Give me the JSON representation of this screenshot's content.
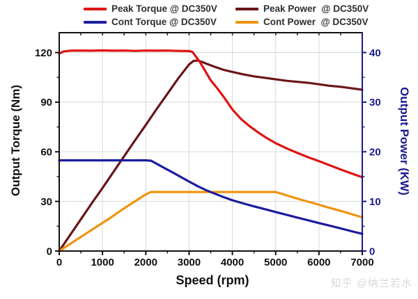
{
  "legend": {
    "items": [
      {
        "label": "Peak Torque @ DC350V",
        "color": "#e01212"
      },
      {
        "label": "Peak Power  @ DC350V",
        "color": "#6a1517"
      },
      {
        "label": "Cont Torque @ DC350V",
        "color": "#1c1c9c"
      },
      {
        "label": "Cont Power  @ DC350V",
        "color": "#f0940f"
      }
    ]
  },
  "watermark": {
    "text": "知乎 @纳兰若水"
  },
  "chart_data": {
    "type": "line",
    "title": "",
    "xlabel": "Speed (rpm)",
    "x_axis": {
      "range": [
        0,
        7000
      ],
      "major_ticks": [
        0,
        1000,
        2000,
        3000,
        4000,
        5000,
        6000,
        7000
      ],
      "minor_step": 500
    },
    "y_left": {
      "label": "Output Torque (Nm)",
      "range": [
        0,
        132
      ],
      "major_ticks": [
        0,
        30,
        60,
        90,
        120
      ],
      "minor_step": 15,
      "color": "#111111"
    },
    "y_right": {
      "label": "Output Power (KW)",
      "range": [
        0,
        44
      ],
      "major_ticks": [
        0,
        10,
        20,
        30,
        40
      ],
      "minor_step": 5,
      "color": "#1a1a8c"
    },
    "grid": true,
    "legend_position": "top",
    "series": [
      {
        "name": "Peak Power @ DC350V",
        "axis": "right",
        "color": "#6a1517",
        "points": [
          [
            0,
            0
          ],
          [
            250,
            3.2
          ],
          [
            500,
            6.4
          ],
          [
            750,
            9.6
          ],
          [
            1000,
            12.7
          ],
          [
            1250,
            15.9
          ],
          [
            1500,
            19.1
          ],
          [
            1750,
            22.3
          ],
          [
            2000,
            25.4
          ],
          [
            2250,
            28.6
          ],
          [
            2500,
            31.7
          ],
          [
            2750,
            34.8
          ],
          [
            3000,
            37.6
          ],
          [
            3100,
            38.3
          ],
          [
            3200,
            38.4
          ],
          [
            3300,
            38.1
          ],
          [
            3450,
            37.6
          ],
          [
            3600,
            37.1
          ],
          [
            3800,
            36.5
          ],
          [
            4000,
            36.1
          ],
          [
            4250,
            35.6
          ],
          [
            4500,
            35.2
          ],
          [
            4750,
            34.9
          ],
          [
            5000,
            34.6
          ],
          [
            5250,
            34.3
          ],
          [
            5500,
            34.1
          ],
          [
            5750,
            33.9
          ],
          [
            6000,
            33.6
          ],
          [
            6250,
            33.3
          ],
          [
            6500,
            33.1
          ],
          [
            6750,
            32.8
          ],
          [
            7000,
            32.5
          ]
        ]
      },
      {
        "name": "Cont Power @ DC350V",
        "axis": "right",
        "color": "#f0940f",
        "points": [
          [
            0,
            0
          ],
          [
            300,
            1.7
          ],
          [
            600,
            3.4
          ],
          [
            900,
            5.1
          ],
          [
            1200,
            6.8
          ],
          [
            1500,
            8.6
          ],
          [
            1800,
            10.3
          ],
          [
            2000,
            11.4
          ],
          [
            2120,
            11.9
          ],
          [
            2500,
            11.9
          ],
          [
            3000,
            11.9
          ],
          [
            3500,
            11.9
          ],
          [
            4000,
            11.9
          ],
          [
            4500,
            11.9
          ],
          [
            5000,
            11.9
          ],
          [
            5300,
            11.1
          ],
          [
            5600,
            10.3
          ],
          [
            5900,
            9.6
          ],
          [
            6200,
            8.8
          ],
          [
            6500,
            8.1
          ],
          [
            6800,
            7.3
          ],
          [
            7000,
            6.8
          ]
        ]
      },
      {
        "name": "Cont Torque @ DC350V",
        "axis": "left",
        "color": "#1c1c9c",
        "points": [
          [
            0,
            54.8
          ],
          [
            500,
            54.8
          ],
          [
            1000,
            54.8
          ],
          [
            1500,
            54.8
          ],
          [
            2000,
            54.8
          ],
          [
            2120,
            54.6
          ],
          [
            2250,
            52.8
          ],
          [
            2400,
            50.6
          ],
          [
            2600,
            47.8
          ],
          [
            2800,
            44.9
          ],
          [
            3000,
            42.0
          ],
          [
            3200,
            39.2
          ],
          [
            3400,
            36.7
          ],
          [
            3600,
            34.6
          ],
          [
            3800,
            32.6
          ],
          [
            4000,
            30.7
          ],
          [
            4250,
            28.8
          ],
          [
            4500,
            27.0
          ],
          [
            4750,
            25.3
          ],
          [
            5000,
            23.6
          ],
          [
            5250,
            21.9
          ],
          [
            5500,
            20.2
          ],
          [
            5750,
            18.6
          ],
          [
            6000,
            16.9
          ],
          [
            6250,
            15.3
          ],
          [
            6500,
            13.7
          ],
          [
            6750,
            12.0
          ],
          [
            7000,
            10.4
          ]
        ]
      },
      {
        "name": "Peak Torque @ DC350V",
        "axis": "left",
        "color": "#e01212",
        "points": [
          [
            0,
            119.4
          ],
          [
            100,
            120.6
          ],
          [
            250,
            121.1
          ],
          [
            500,
            121.2
          ],
          [
            750,
            121.1
          ],
          [
            1000,
            121.3
          ],
          [
            1250,
            121.1
          ],
          [
            1500,
            121.2
          ],
          [
            1750,
            121.0
          ],
          [
            2000,
            121.2
          ],
          [
            2250,
            121.1
          ],
          [
            2500,
            121.2
          ],
          [
            2750,
            121.0
          ],
          [
            3000,
            120.9
          ],
          [
            3080,
            120.3
          ],
          [
            3150,
            117.8
          ],
          [
            3250,
            114.2
          ],
          [
            3350,
            109.8
          ],
          [
            3500,
            103.2
          ],
          [
            3650,
            98.4
          ],
          [
            3800,
            93.2
          ],
          [
            4000,
            85.6
          ],
          [
            4200,
            79.8
          ],
          [
            4400,
            75.4
          ],
          [
            4600,
            71.6
          ],
          [
            4800,
            68.2
          ],
          [
            5000,
            65.2
          ],
          [
            5250,
            62.1
          ],
          [
            5500,
            59.3
          ],
          [
            5750,
            56.7
          ],
          [
            6000,
            54.3
          ],
          [
            6250,
            51.8
          ],
          [
            6500,
            49.3
          ],
          [
            6750,
            46.9
          ],
          [
            7000,
            44.6
          ]
        ]
      }
    ]
  }
}
